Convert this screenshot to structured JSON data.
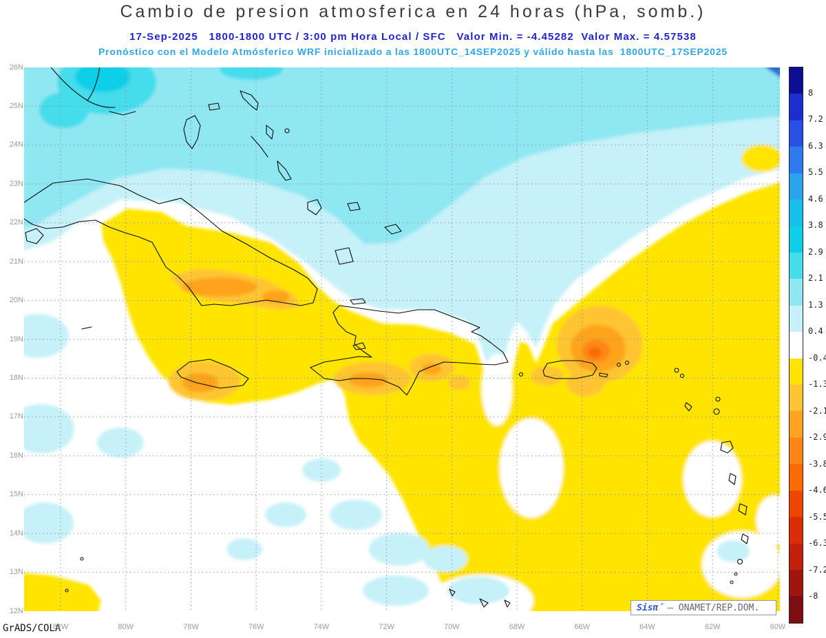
{
  "title": "Cambio de presion atmosferica en 24 horas (hPa, somb.)",
  "subtitle_line1": "17-Sep-2025   1800-1800 UTC / 3:00 pm Hora Local / SFC   Valor Min. = -4.45282  Valor Max. = 4.57538",
  "subtitle_line2": "Pronóstico con el Modelo Atmósferico WRF inicializado a las 1800UTC_14SEP2025 y válido hasta las  1800UTC_17SEP2025",
  "credit": "GrADS/COLA",
  "watermark": {
    "brand": "Sisπ́",
    "org": "– ONAMET/REP.DOM."
  },
  "colors": {
    "title_text": "#3a3a3a",
    "subtitle1_text": "#2323cf",
    "subtitle2_text": "#2fa7e0",
    "axis_labels": "#9a9a9a",
    "coastline": "#0a0a0a",
    "shade_light_cyan": "#c6f1f8",
    "shade_med_cyan": "#8fe7f2",
    "shade_bright_cyan": "#45dcec",
    "shade_deep_cyan": "#0fcfe8",
    "shade_yellow": "#ffe400",
    "shade_gold": "#ffc431",
    "shade_orange": "#ffa31e",
    "shade_deep_orange": "#ff8516"
  },
  "axes": {
    "lat_labels": [
      "26N",
      "25N",
      "24N",
      "23N",
      "22N",
      "21N",
      "20N",
      "19N",
      "18N",
      "17N",
      "16N",
      "15N",
      "14N",
      "13N",
      "12N"
    ],
    "lon_labels": [
      "82W",
      "80W",
      "78W",
      "76W",
      "74W",
      "72W",
      "70W",
      "68W",
      "66W",
      "64W",
      "62W",
      "60W"
    ]
  },
  "colorbar": {
    "labels": [
      "8",
      "7.2",
      "6.3",
      "5.5",
      "4.6",
      "3.8",
      "2.9",
      "2.1",
      "1.3",
      "0.4",
      "-0.4",
      "-1.3",
      "-2.1",
      "-2.9",
      "-3.8",
      "-4.6",
      "-5.5",
      "-6.3",
      "-7.2",
      "-8"
    ],
    "cells": [
      "#0d0d96",
      "#1c2ecf",
      "#2b50e8",
      "#2e7bf0",
      "#2ba4ef",
      "#17c0ea",
      "#0fcfe8",
      "#45dcec",
      "#8fe7f2",
      "#c6f1f8",
      "#ffffff",
      "#ffe400",
      "#ffc431",
      "#ffa31e",
      "#ff8516",
      "#f96a00",
      "#ef4503",
      "#dc2d08",
      "#c21f0c",
      "#a1150f",
      "#7f0e12"
    ]
  },
  "chart_data": {
    "type": "heatmap",
    "title": "Cambio de presion atmosferica en 24 horas (hPa, somb.)",
    "units": "hPa",
    "valid": "17-Sep-2025 1800-1800 UTC / 3:00 pm Hora Local / SFC",
    "model": "WRF inicializado a las 1800UTC_14SEP2025, válido hasta las 1800UTC_17SEP2025",
    "value_min": -4.45282,
    "value_max": 4.57538,
    "lat_range_deg_n": [
      12,
      26
    ],
    "lon_range_deg_w": [
      83.1,
      59.9
    ],
    "grid": "dotted, 1 deg lat x 2 deg lon",
    "contour_levels": [
      -8,
      -7.2,
      -6.3,
      -5.5,
      -4.6,
      -3.8,
      -2.9,
      -2.1,
      -1.3,
      -0.4,
      0.4,
      1.3,
      2.1,
      2.9,
      3.8,
      4.6,
      5.5,
      6.3,
      7.2,
      8
    ],
    "legend_position": "right vertical colorbar",
    "features": [
      {
        "region": "Atlántico norte (Florida/Bahamas, 23N-26N)",
        "sign": "positivo",
        "approx_value_hpa": "+0.4 a +3.8, núcleo brillante cerca de 80.5W 25.5N"
      },
      {
        "region": "Esquina noreste (60W 26N)",
        "sign": "positivo",
        "approx_value_hpa": "+3.8 a +4.6 (máximo 4.58)"
      },
      {
        "region": "NE de Puerto Rico (~66W 19N)",
        "sign": "negativo",
        "approx_value_hpa": "-2.9 a -3.8 en el núcleo (mínimo -4.45)"
      },
      {
        "region": "Costa sur de Cuba (~78W 20.5N)",
        "sign": "negativo",
        "approx_value_hpa": "-2.1 a -2.9"
      },
      {
        "region": "Jamaica y sur de La Española",
        "sign": "negativo",
        "approx_value_hpa": "-1.3 a -2.9"
      },
      {
        "region": "Atlántico este y Caribe central (60W-70W, 12N-22N)",
        "sign": "negativo",
        "approx_value_hpa": "-0.4 a -1.3"
      },
      {
        "region": "Caribe suroeste (oeste de 75W, sur de 17N)",
        "sign": "neutro",
        "approx_value_hpa": "-0.4 a +0.4"
      }
    ]
  }
}
